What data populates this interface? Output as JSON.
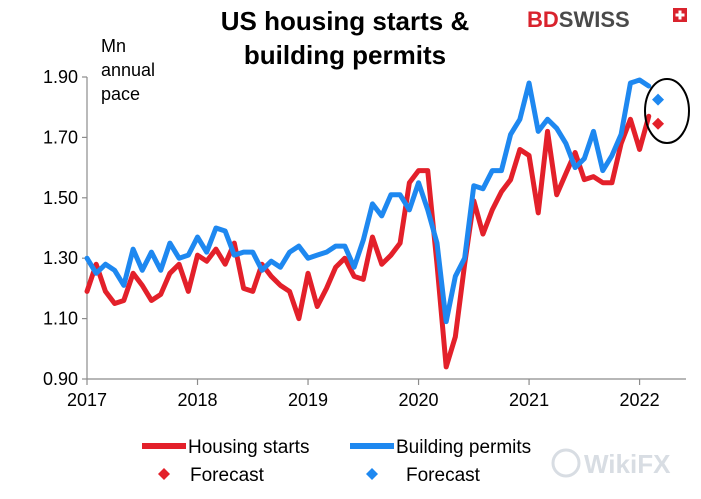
{
  "brand": {
    "logo_text": "BDSWISS",
    "logo_bd": "BD",
    "logo_swiss": "SWISS",
    "watermark": "WikiFX",
    "colors": {
      "bd": "#d9232d",
      "swiss": "#4a4a4a"
    }
  },
  "chart_data": {
    "type": "line",
    "title_line1": "US housing starts &",
    "title_line2": "building permits",
    "unit_label_lines": [
      "Mn",
      "annual",
      "pace"
    ],
    "xlabel": "",
    "ylabel": "",
    "xlim": [
      2017.0,
      2022.42
    ],
    "ylim": [
      0.9,
      1.9
    ],
    "x_ticks": [
      2017,
      2018,
      2019,
      2020,
      2021,
      2022
    ],
    "x_tick_labels": [
      "2017",
      "2018",
      "2019",
      "2020",
      "2021",
      "2022"
    ],
    "y_ticks": [
      0.9,
      1.1,
      1.3,
      1.5,
      1.7,
      1.9
    ],
    "y_tick_labels": [
      "0.90",
      "1.10",
      "1.30",
      "1.50",
      "1.70",
      "1.90"
    ],
    "grid": false,
    "legend_position": "bottom",
    "series": [
      {
        "name": "Housing starts",
        "color": "#e3202a",
        "x": [
          2017.0,
          2017.083,
          2017.167,
          2017.25,
          2017.333,
          2017.417,
          2017.5,
          2017.583,
          2017.667,
          2017.75,
          2017.833,
          2017.917,
          2018.0,
          2018.083,
          2018.167,
          2018.25,
          2018.333,
          2018.417,
          2018.5,
          2018.583,
          2018.667,
          2018.75,
          2018.833,
          2018.917,
          2019.0,
          2019.083,
          2019.167,
          2019.25,
          2019.333,
          2019.417,
          2019.5,
          2019.583,
          2019.667,
          2019.75,
          2019.833,
          2019.917,
          2020.0,
          2020.083,
          2020.167,
          2020.25,
          2020.333,
          2020.417,
          2020.5,
          2020.583,
          2020.667,
          2020.75,
          2020.833,
          2020.917,
          2021.0,
          2021.083,
          2021.167,
          2021.25,
          2021.333,
          2021.417,
          2021.5,
          2021.583,
          2021.667,
          2021.75,
          2021.833,
          2021.917,
          2022.0,
          2022.083
        ],
        "values": [
          1.19,
          1.28,
          1.19,
          1.15,
          1.16,
          1.25,
          1.21,
          1.16,
          1.18,
          1.25,
          1.28,
          1.19,
          1.31,
          1.29,
          1.33,
          1.28,
          1.35,
          1.2,
          1.19,
          1.28,
          1.24,
          1.21,
          1.19,
          1.1,
          1.25,
          1.14,
          1.2,
          1.27,
          1.3,
          1.24,
          1.23,
          1.37,
          1.28,
          1.31,
          1.35,
          1.55,
          1.59,
          1.59,
          1.28,
          0.94,
          1.04,
          1.28,
          1.49,
          1.38,
          1.46,
          1.52,
          1.56,
          1.66,
          1.64,
          1.45,
          1.72,
          1.51,
          1.58,
          1.65,
          1.56,
          1.57,
          1.55,
          1.55,
          1.68,
          1.76,
          1.66,
          1.77
        ]
      },
      {
        "name": "Building permits",
        "color": "#1e88f0",
        "x": [
          2017.0,
          2017.083,
          2017.167,
          2017.25,
          2017.333,
          2017.417,
          2017.5,
          2017.583,
          2017.667,
          2017.75,
          2017.833,
          2017.917,
          2018.0,
          2018.083,
          2018.167,
          2018.25,
          2018.333,
          2018.417,
          2018.5,
          2018.583,
          2018.667,
          2018.75,
          2018.833,
          2018.917,
          2019.0,
          2019.083,
          2019.167,
          2019.25,
          2019.333,
          2019.417,
          2019.5,
          2019.583,
          2019.667,
          2019.75,
          2019.833,
          2019.917,
          2020.0,
          2020.083,
          2020.167,
          2020.25,
          2020.333,
          2020.417,
          2020.5,
          2020.583,
          2020.667,
          2020.75,
          2020.833,
          2020.917,
          2021.0,
          2021.083,
          2021.167,
          2021.25,
          2021.333,
          2021.417,
          2021.5,
          2021.583,
          2021.667,
          2021.75,
          2021.833,
          2021.917,
          2022.0,
          2022.083
        ],
        "values": [
          1.3,
          1.25,
          1.28,
          1.26,
          1.21,
          1.33,
          1.26,
          1.32,
          1.26,
          1.35,
          1.3,
          1.31,
          1.37,
          1.32,
          1.4,
          1.39,
          1.31,
          1.32,
          1.32,
          1.26,
          1.29,
          1.27,
          1.32,
          1.34,
          1.3,
          1.31,
          1.32,
          1.34,
          1.34,
          1.27,
          1.36,
          1.48,
          1.44,
          1.51,
          1.51,
          1.46,
          1.55,
          1.46,
          1.35,
          1.09,
          1.24,
          1.3,
          1.54,
          1.53,
          1.59,
          1.59,
          1.71,
          1.76,
          1.88,
          1.72,
          1.76,
          1.73,
          1.68,
          1.6,
          1.63,
          1.72,
          1.59,
          1.64,
          1.71,
          1.88,
          1.89,
          1.87
        ]
      }
    ],
    "forecasts": [
      {
        "name": "Forecast",
        "series": "Housing starts",
        "x": 2022.167,
        "value": 1.745,
        "color": "#e3202a"
      },
      {
        "name": "Forecast",
        "series": "Building permits",
        "x": 2022.167,
        "value": 1.825,
        "color": "#1e88f0"
      }
    ],
    "legend": [
      {
        "label": "Housing starts",
        "kind": "line",
        "color": "#e3202a"
      },
      {
        "label": "Building permits",
        "kind": "line",
        "color": "#1e88f0"
      },
      {
        "label": "Forecast",
        "kind": "diamond",
        "color": "#e3202a"
      },
      {
        "label": "Forecast",
        "kind": "diamond",
        "color": "#1e88f0"
      }
    ]
  }
}
